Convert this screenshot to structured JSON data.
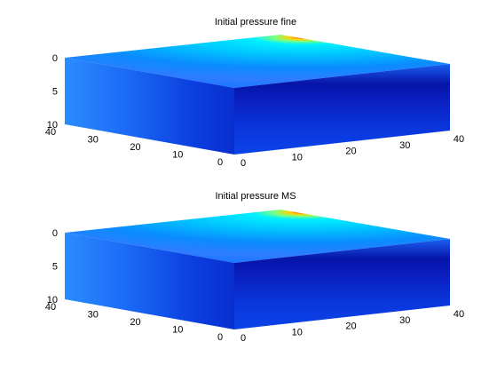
{
  "chart_data": [
    {
      "type": "surface3d",
      "title": "Initial pressure fine",
      "colormap": "jet",
      "x_ticks": [
        "0",
        "10",
        "20",
        "30",
        "40"
      ],
      "y_ticks": [
        "0",
        "10",
        "20",
        "30",
        "40"
      ],
      "z_ticks": [
        "0",
        "5",
        "10"
      ],
      "xlim": [
        0,
        40
      ],
      "ylim": [
        0,
        40
      ],
      "zlim": [
        0,
        10
      ],
      "z_reversed": true,
      "grid": false,
      "box": false
    },
    {
      "type": "surface3d",
      "title": "Initial pressure MS",
      "colormap": "jet",
      "x_ticks": [
        "0",
        "10",
        "20",
        "30",
        "40"
      ],
      "y_ticks": [
        "0",
        "10",
        "20",
        "30",
        "40"
      ],
      "z_ticks": [
        "0",
        "5",
        "10"
      ],
      "xlim": [
        0,
        40
      ],
      "ylim": [
        0,
        40
      ],
      "zlim": [
        0,
        10
      ],
      "z_reversed": true,
      "grid": false,
      "box": false
    }
  ]
}
